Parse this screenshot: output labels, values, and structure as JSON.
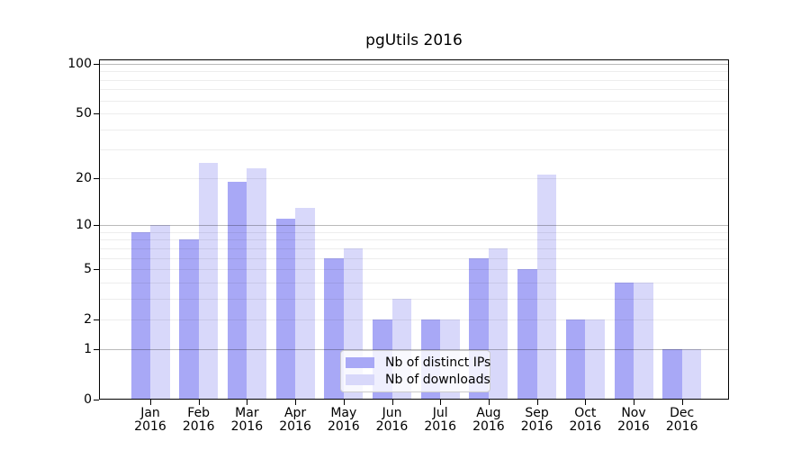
{
  "title": "pgUtils 2016",
  "chart_data": {
    "type": "bar",
    "title": "pgUtils 2016",
    "categories": [
      "Jan 2016",
      "Feb 2016",
      "Mar 2016",
      "Apr 2016",
      "May 2016",
      "Jun 2016",
      "Jul 2016",
      "Aug 2016",
      "Sep 2016",
      "Oct 2016",
      "Nov 2016",
      "Dec 2016"
    ],
    "series": [
      {
        "name": "Nb of distinct IPs",
        "color": "#a8a8f6",
        "values": [
          9,
          8,
          19,
          11,
          6,
          2,
          2,
          6,
          5,
          2,
          4,
          1
        ]
      },
      {
        "name": "Nb of downloads",
        "color": "#d8d8fa",
        "values": [
          10,
          25,
          23,
          13,
          7,
          3,
          2,
          7,
          21,
          2,
          4,
          1
        ]
      }
    ],
    "xlabel": "",
    "ylabel": "",
    "yscale": "symlog",
    "ytick_values": [
      0,
      1,
      2,
      5,
      10,
      20,
      50,
      100
    ],
    "ytick_labels": [
      "0",
      "1",
      "2",
      "5",
      "10",
      "20",
      "50",
      "100"
    ],
    "ylim": [
      0,
      106
    ],
    "grid": "horizontal log major+minor",
    "legend_position": "inside-bottom-center"
  }
}
